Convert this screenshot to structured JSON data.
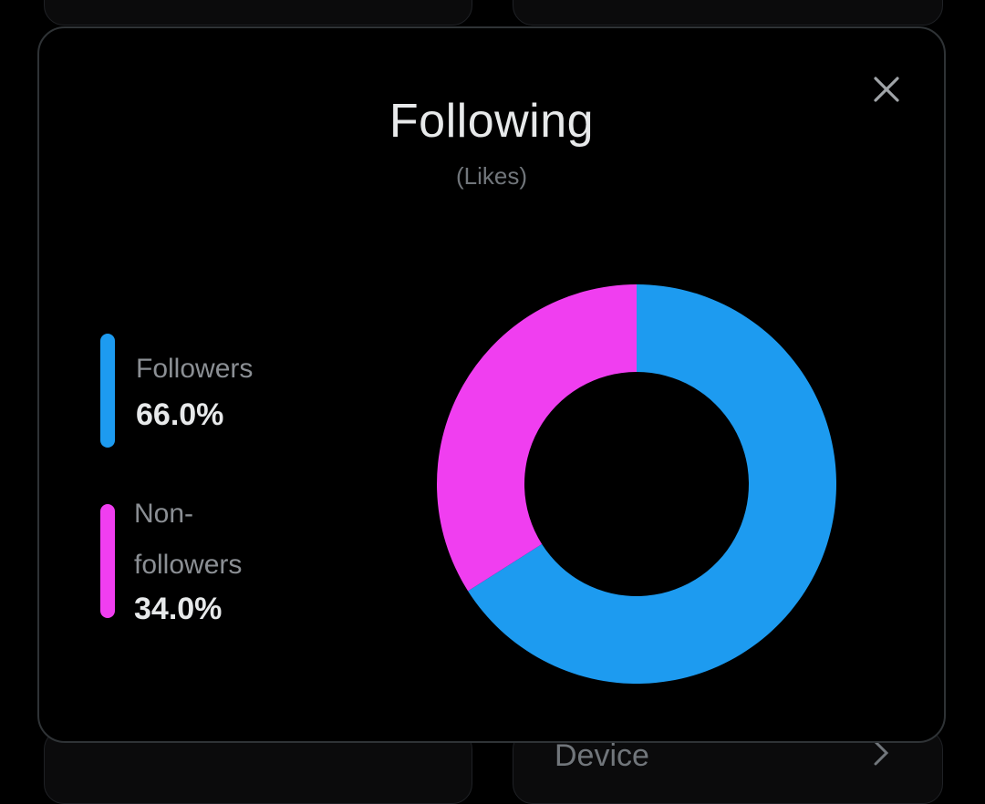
{
  "background": {
    "card_bottom_right_label": "Device"
  },
  "modal": {
    "title": "Following",
    "subtitle": "(Likes)",
    "close_icon": "close-icon"
  },
  "colors": {
    "followers": "#1d9bf0",
    "non_followers": "#f03ef0",
    "background": "#000000",
    "border": "#2f3336",
    "title_text": "#e7e9ea",
    "muted_text": "#71767b"
  },
  "legend": [
    {
      "label": "Followers",
      "value": "66.0%",
      "color": "#1d9bf0"
    },
    {
      "label": "Non-followers",
      "value": "34.0%",
      "color": "#f03ef0"
    }
  ],
  "chart_data": {
    "type": "pie",
    "donut": true,
    "title": "Following",
    "subtitle": "(Likes)",
    "categories": [
      "Followers",
      "Non-followers"
    ],
    "values": [
      66.0,
      34.0
    ],
    "colors": [
      "#1d9bf0",
      "#f03ef0"
    ],
    "legend_position": "left"
  }
}
